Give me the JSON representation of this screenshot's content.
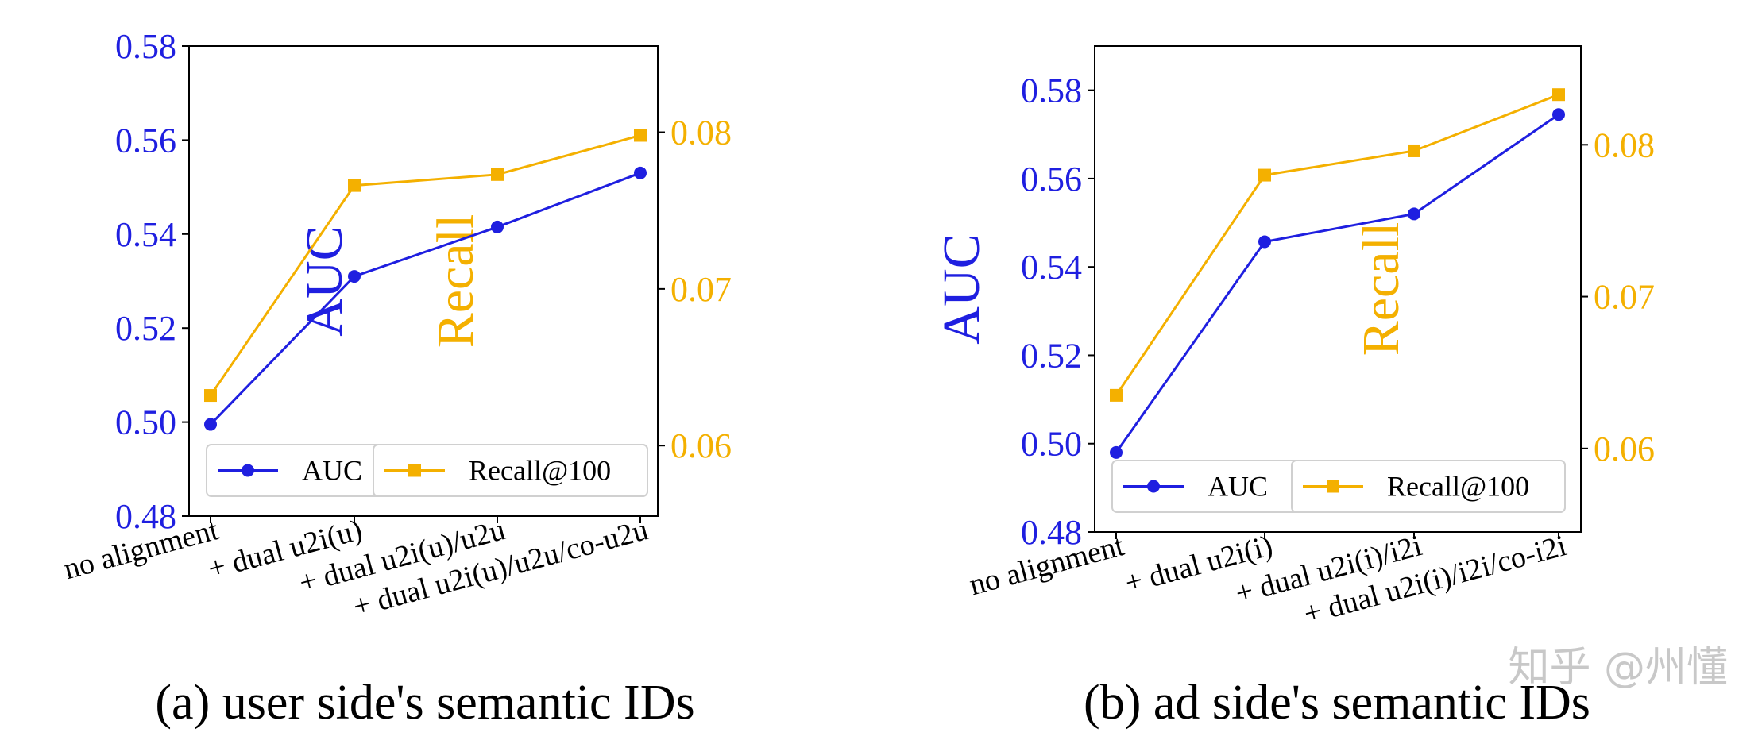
{
  "chart_data": [
    {
      "type": "line",
      "caption": "(a) user side's semantic IDs",
      "categories": [
        "no alignment",
        "+ dual u2i(u)",
        "+ dual u2i(u)/u2u",
        "+ dual u2i(u)/u2u/co-u2u"
      ],
      "ylabel": "AUC",
      "ylabel_right": "Recall",
      "ylim": [
        0.48,
        0.58
      ],
      "ylim_right": [
        0.0555,
        0.0855
      ],
      "yticks": [
        "0.48",
        "0.50",
        "0.52",
        "0.54",
        "0.56",
        "0.58"
      ],
      "yticks_right": [
        "0.06",
        "0.07",
        "0.08"
      ],
      "series": [
        {
          "name": "AUC",
          "axis": "left",
          "color": "#1f1fe0",
          "marker": "circle",
          "values": [
            0.4995,
            0.531,
            0.5415,
            0.553
          ]
        },
        {
          "name": "Recall@100",
          "axis": "right",
          "color": "#f4b000",
          "marker": "square",
          "values": [
            0.0632,
            0.0766,
            0.0773,
            0.0798
          ]
        }
      ],
      "legend": "lower-right",
      "grid": false
    },
    {
      "type": "line",
      "caption": "(b) ad side's semantic IDs",
      "categories": [
        "no alignment",
        "+ dual u2i(i)",
        "+ dual u2i(i)/i2i",
        "+ dual u2i(i)/i2i/co-i2i"
      ],
      "ylabel": "AUC",
      "ylabel_right": "Recall",
      "ylim": [
        0.48,
        0.59
      ],
      "ylim_right": [
        0.0545,
        0.0865
      ],
      "yticks": [
        "0.48",
        "0.50",
        "0.52",
        "0.54",
        "0.56",
        "0.58"
      ],
      "yticks_right": [
        "0.06",
        "0.07",
        "0.08"
      ],
      "series": [
        {
          "name": "AUC",
          "axis": "left",
          "color": "#1f1fe0",
          "marker": "circle",
          "values": [
            0.498,
            0.5457,
            0.552,
            0.5745
          ]
        },
        {
          "name": "Recall@100",
          "axis": "right",
          "color": "#f4b000",
          "marker": "square",
          "values": [
            0.0635,
            0.078,
            0.0796,
            0.0833
          ]
        }
      ],
      "legend": "lower-right",
      "grid": false
    }
  ],
  "watermark": "知乎 @州懂"
}
